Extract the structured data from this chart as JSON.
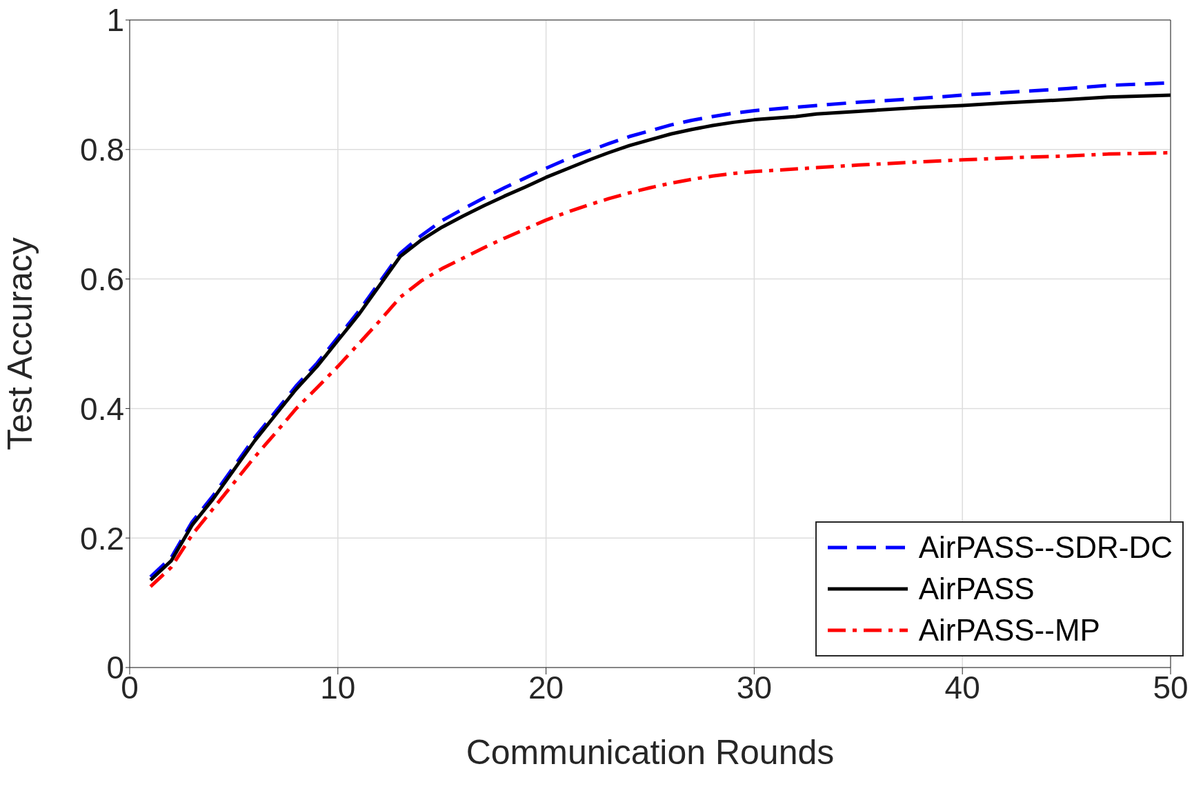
{
  "chart_data": {
    "type": "line",
    "xlabel": "Communication Rounds",
    "ylabel": "Test Accuracy",
    "xlim": [
      0,
      50
    ],
    "xticks": [
      0,
      10,
      20,
      30,
      40,
      50
    ],
    "ylim": [
      0,
      1
    ],
    "yticks": [
      0,
      0.2,
      0.4,
      0.6,
      0.8,
      1
    ],
    "grid": true,
    "legend": "bottom right",
    "marker": "none",
    "series": [
      {
        "name": "AirPASS--SDR-DC",
        "color": "#0000ff",
        "line_style": "dashed",
        "x": [
          1,
          2,
          3,
          4,
          5,
          6,
          7,
          8,
          9,
          10,
          11,
          12,
          13,
          14,
          15,
          16,
          17,
          18,
          19,
          20,
          21,
          22,
          23,
          24,
          25,
          26,
          27,
          28,
          29,
          30,
          33,
          35,
          38,
          40,
          43,
          45,
          47,
          50
        ],
        "values": [
          0.14,
          0.17,
          0.225,
          0.265,
          0.31,
          0.355,
          0.395,
          0.435,
          0.47,
          0.51,
          0.55,
          0.595,
          0.64,
          0.667,
          0.69,
          0.708,
          0.725,
          0.741,
          0.756,
          0.771,
          0.785,
          0.797,
          0.809,
          0.82,
          0.829,
          0.838,
          0.845,
          0.851,
          0.856,
          0.86,
          0.868,
          0.873,
          0.879,
          0.884,
          0.89,
          0.894,
          0.899,
          0.903
        ]
      },
      {
        "name": "AirPASS",
        "color": "#000000",
        "line_style": "solid",
        "x": [
          1,
          2,
          3,
          4,
          5,
          6,
          7,
          8,
          9,
          10,
          11,
          12,
          13,
          14,
          15,
          16,
          17,
          18,
          19,
          20,
          21,
          22,
          23,
          24,
          25,
          26,
          27,
          28,
          29,
          30,
          32,
          33,
          35,
          38,
          40,
          42,
          45,
          47,
          50
        ],
        "values": [
          0.135,
          0.165,
          0.22,
          0.26,
          0.305,
          0.35,
          0.39,
          0.43,
          0.465,
          0.505,
          0.545,
          0.59,
          0.635,
          0.66,
          0.68,
          0.697,
          0.713,
          0.728,
          0.742,
          0.757,
          0.77,
          0.783,
          0.795,
          0.806,
          0.815,
          0.824,
          0.831,
          0.837,
          0.842,
          0.846,
          0.851,
          0.855,
          0.859,
          0.865,
          0.868,
          0.872,
          0.877,
          0.881,
          0.884
        ]
      },
      {
        "name": "AirPASS--MP",
        "color": "#ff0000",
        "line_style": "dashdot",
        "x": [
          1,
          2,
          3,
          4,
          5,
          6,
          7,
          8,
          9,
          10,
          11,
          12,
          13,
          14,
          15,
          16,
          17,
          18,
          19,
          20,
          21,
          22,
          23,
          24,
          25,
          26,
          27,
          28,
          29,
          30,
          33,
          35,
          38,
          40,
          43,
          45,
          47,
          50
        ],
        "values": [
          0.125,
          0.155,
          0.205,
          0.245,
          0.285,
          0.325,
          0.362,
          0.4,
          0.432,
          0.465,
          0.5,
          0.535,
          0.572,
          0.597,
          0.616,
          0.632,
          0.648,
          0.663,
          0.677,
          0.691,
          0.703,
          0.714,
          0.724,
          0.733,
          0.741,
          0.748,
          0.754,
          0.759,
          0.763,
          0.766,
          0.772,
          0.776,
          0.781,
          0.784,
          0.788,
          0.79,
          0.793,
          0.795
        ]
      }
    ]
  }
}
